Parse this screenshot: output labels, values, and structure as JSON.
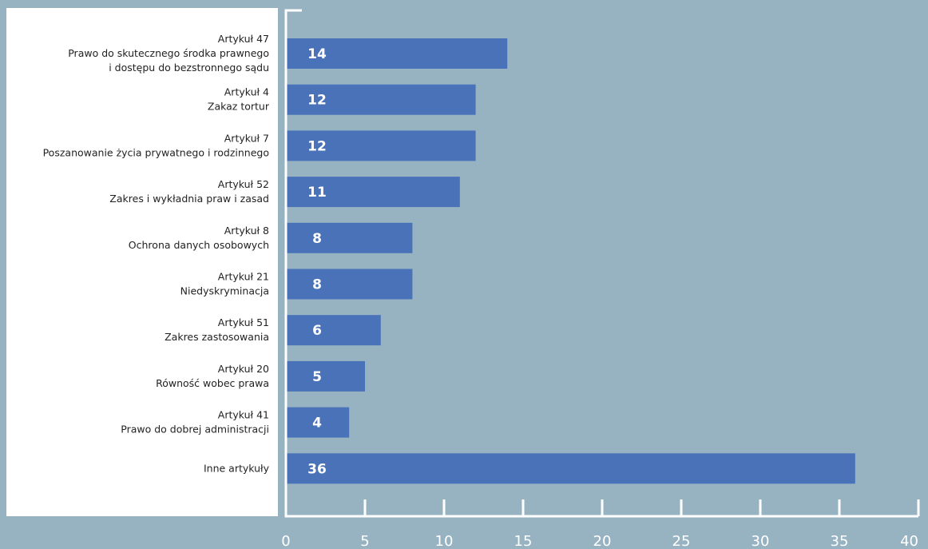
{
  "colors": {
    "background": "#97b3c2",
    "label_panel": "#ffffff",
    "bar": "#4a72b8",
    "axis": "#ffffff",
    "bar_text": "#ffffff",
    "category_text": "#222222"
  },
  "chart_data": {
    "type": "bar",
    "orientation": "horizontal",
    "categories": [
      [
        "Artykuł 47",
        "Prawo do skutecznego środka prawnego",
        "i dostępu do bezstronnego sądu"
      ],
      [
        "Artykuł 4",
        "Zakaz tortur"
      ],
      [
        "Artykuł 7",
        "Poszanowanie życia prywatnego i rodzinnego"
      ],
      [
        "Artykuł 52",
        "Zakres i wykładnia praw i zasad"
      ],
      [
        "Artykuł 8",
        "Ochrona danych osobowych"
      ],
      [
        "Artykuł 21",
        "Niedyskryminacja"
      ],
      [
        "Artykuł 51",
        "Zakres zastosowania"
      ],
      [
        "Artykuł 20",
        "Równość wobec prawa"
      ],
      [
        "Artykuł 41",
        "Prawo do dobrej administracji"
      ],
      [
        "Inne artykuły"
      ]
    ],
    "values": [
      14,
      12,
      12,
      11,
      8,
      8,
      6,
      5,
      4,
      36
    ],
    "xlim": [
      0,
      40
    ],
    "xticks": [
      0,
      5,
      10,
      15,
      20,
      25,
      30,
      35,
      40
    ],
    "data_labels": true,
    "grid": false,
    "legend": "none"
  }
}
